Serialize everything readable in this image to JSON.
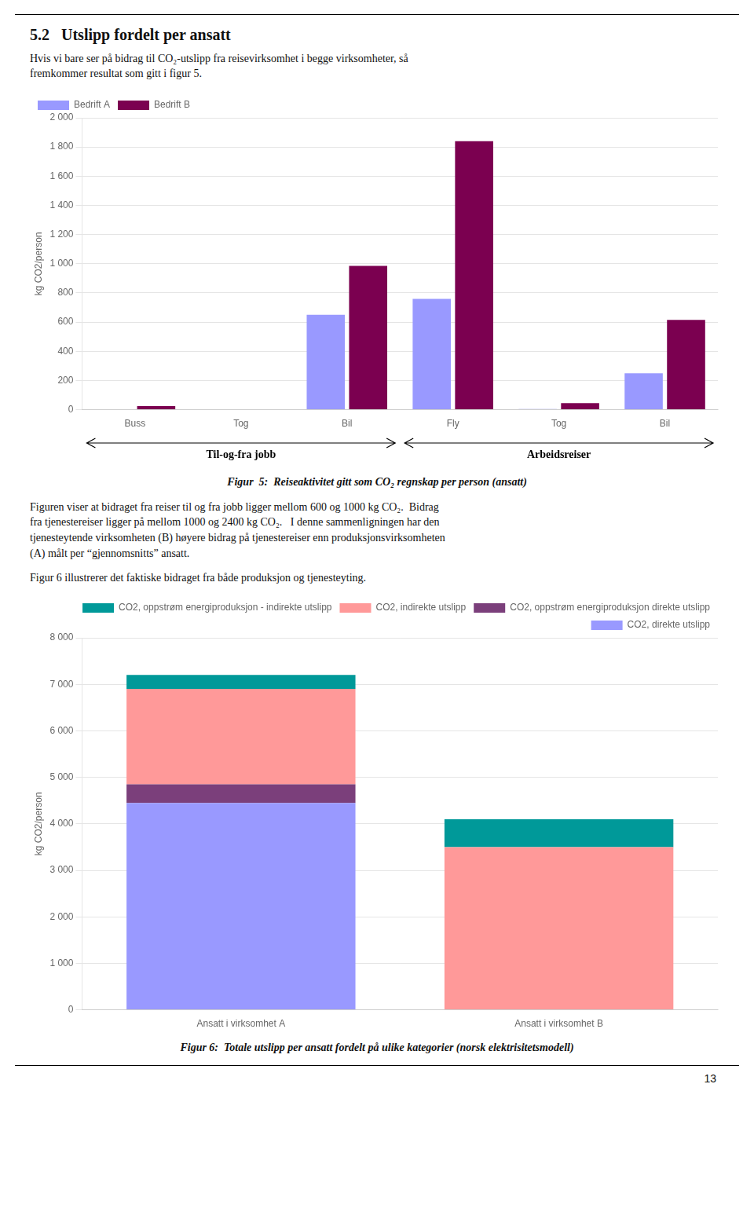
{
  "title": "5.2   Utslipp fordelt per ansatt",
  "subtitle": "Hvis vi bare ser på bidrag til CO₂-utslipp fra reisevirksomhet i begge virksomheter, så\nfremkommer resultat som gitt i figur 5.",
  "annotations": [
    "Figuren viser at bidraget fra reiser til og fra jobb ligger mellom 600 og 1000 kg CO₂.  Bidrag\nfra tjenestereiser ligger på mellom 1000 og 2400 kg CO₂.   I denne sammenligningen har den\ntjenesteytende virksomheten (B) høyere bidrag på tjenestereiser enn produksjonsvirksomheten\n(A) målt per “gjennomsnitts” ansatt.",
    "Figur 6 illustrerer det faktiske bidraget fra både produksjon og tjenesteyting.",
    "13"
  ],
  "chart_data": [
    {
      "type": "bar",
      "title": "Figur  5:  Reiseaktivitet gitt som CO₂ regnskap per person (ansatt)",
      "categories": [
        "Buss",
        "Tog",
        "Bil",
        "Fly",
        "Tog",
        "Bil"
      ],
      "series": [
        {
          "name": "Bedrift A",
          "color": "#9999FF",
          "values": [
            0,
            0,
            650,
            760,
            5,
            250
          ]
        },
        {
          "name": "Bedrift B",
          "color": "#7B0050",
          "values": [
            25,
            0,
            985,
            1840,
            45,
            615
          ]
        }
      ],
      "ylabel": "kg CO2/person",
      "ylim": [
        0,
        2000
      ],
      "yticks": [
        0,
        200,
        400,
        600,
        800,
        {
          "value": 1000,
          "label": "1 000"
        },
        {
          "value": 1200,
          "label": "1 200"
        },
        {
          "value": 1400,
          "label": "1 400"
        },
        {
          "value": 1600,
          "label": "1 600"
        },
        {
          "value": 1800,
          "label": "1 800"
        },
        {
          "value": 2000,
          "label": "2 000"
        }
      ],
      "grid": true,
      "legend": "upper left",
      "annotations": [
        "Til-og-fra jobb",
        "Arbeidsreiser"
      ]
    },
    {
      "type": "bar",
      "title": "Figur 6:  Totale utslipp per ansatt fordelt på ulike kategorier (norsk elektrisitetsmodell)",
      "categories": [
        "Ansatt i virksomhet A",
        "Ansatt i virksomhet B"
      ],
      "stacked": true,
      "series": [
        {
          "name": "CO2, direkte utslipp",
          "color": "#9999FF",
          "values": [
            4450,
            0
          ]
        },
        {
          "name": "CO2, oppstrøm energiproduksjon direkte utslipp",
          "color": "#7B3F7B",
          "values": [
            400,
            0
          ]
        },
        {
          "name": "CO2, indirekte utslipp",
          "color": "#FF9999",
          "values": [
            2050,
            3500
          ]
        },
        {
          "name": "CO2, oppstrøm energiproduksjon - indirekte utslipp",
          "color": "#009999",
          "values": [
            300,
            600
          ]
        }
      ],
      "ylabel": "kg CO2/person",
      "ylim": [
        0,
        8000
      ],
      "yticks": [
        0,
        {
          "value": 1000,
          "label": "1 000"
        },
        {
          "value": 2000,
          "label": "2 000"
        },
        {
          "value": 3000,
          "label": "3 000"
        },
        {
          "value": 4000,
          "label": "4 000"
        },
        {
          "value": 5000,
          "label": "5 000"
        },
        {
          "value": 6000,
          "label": "6 000"
        },
        {
          "value": 7000,
          "label": "7 000"
        },
        {
          "value": 8000,
          "label": "8 000"
        }
      ],
      "grid": true,
      "legend": "upper right"
    }
  ]
}
